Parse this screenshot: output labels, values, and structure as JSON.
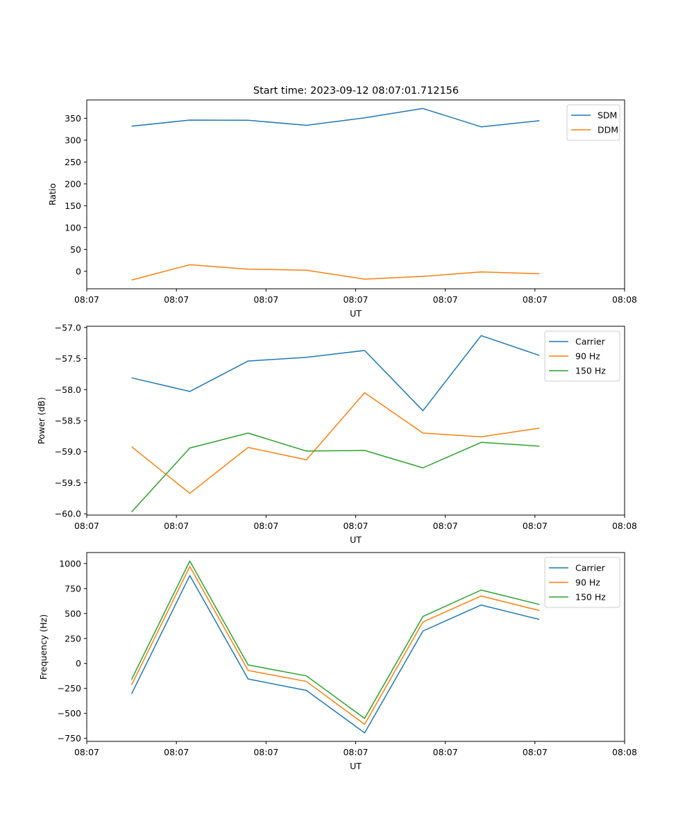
{
  "title": "Start time: 2023-09-12 08:07:01.712156",
  "colors": {
    "c0": "#1f77b4",
    "c1": "#ff7f0e",
    "c2": "#2ca02c"
  },
  "chart_data": [
    {
      "type": "line",
      "title": "Start time: 2023-09-12 08:07:01.712156",
      "xlabel": "UT",
      "ylabel": "Ratio",
      "xlim": [
        0,
        6
      ],
      "x": [
        0.5,
        1.15,
        1.8,
        2.45,
        3.1,
        3.75,
        4.4,
        5.05
      ],
      "xticks": [
        0,
        1,
        2,
        3,
        4,
        5,
        6
      ],
      "xtick_labels": [
        "08:07",
        "08:07",
        "08:07",
        "08:07",
        "08:07",
        "08:07",
        "08:08"
      ],
      "ylim": [
        -40,
        392
      ],
      "yticks": [
        0,
        50,
        100,
        150,
        200,
        250,
        300,
        350
      ],
      "legend_position": "top-right",
      "series": [
        {
          "name": "SDM",
          "color": "#1f77b4",
          "values": [
            332,
            346,
            345.5,
            334,
            351,
            372.5,
            330.5,
            344.5
          ]
        },
        {
          "name": "DDM",
          "color": "#ff7f0e",
          "values": [
            -20,
            15,
            5,
            2.5,
            -18,
            -11.5,
            -1.5,
            -5.5
          ]
        }
      ]
    },
    {
      "type": "line",
      "title": "",
      "xlabel": "UT",
      "ylabel": "Power (dB)",
      "xlim": [
        0,
        6
      ],
      "x": [
        0.5,
        1.15,
        1.8,
        2.45,
        3.1,
        3.75,
        4.4,
        5.05
      ],
      "xticks": [
        0,
        1,
        2,
        3,
        4,
        5,
        6
      ],
      "xtick_labels": [
        "08:07",
        "08:07",
        "08:07",
        "08:07",
        "08:07",
        "08:07",
        "08:08"
      ],
      "ylim": [
        -60.02,
        -56.98
      ],
      "yticks": [
        -60.0,
        -59.5,
        -59.0,
        -58.5,
        -58.0,
        -57.5,
        -57.0
      ],
      "ytick_labels": [
        "−60.0",
        "−59.5",
        "−59.0",
        "−58.5",
        "−58.0",
        "−57.5",
        "−57.0"
      ],
      "legend_position": "top-right",
      "series": [
        {
          "name": "Carrier",
          "color": "#1f77b4",
          "values": [
            -57.81,
            -58.03,
            -57.54,
            -57.48,
            -57.37,
            -58.34,
            -57.13,
            -57.45
          ]
        },
        {
          "name": "90 Hz",
          "color": "#ff7f0e",
          "values": [
            -58.92,
            -59.67,
            -58.93,
            -59.13,
            -58.05,
            -58.7,
            -58.76,
            -58.62
          ]
        },
        {
          "name": "150 Hz",
          "color": "#2ca02c",
          "values": [
            -59.97,
            -58.94,
            -58.7,
            -58.99,
            -58.98,
            -59.26,
            -58.85,
            -58.91
          ]
        }
      ]
    },
    {
      "type": "line",
      "title": "",
      "xlabel": "UT",
      "ylabel": "Frequency (Hz)",
      "xlim": [
        0,
        6
      ],
      "x": [
        0.5,
        1.15,
        1.8,
        2.45,
        3.1,
        3.75,
        4.4,
        5.05
      ],
      "xticks": [
        0,
        1,
        2,
        3,
        4,
        5,
        6
      ],
      "xtick_labels": [
        "08:07",
        "08:07",
        "08:07",
        "08:07",
        "08:07",
        "08:07",
        "08:08"
      ],
      "ylim": [
        -780,
        1110
      ],
      "yticks": [
        -750,
        -500,
        -250,
        0,
        250,
        500,
        750,
        1000
      ],
      "ytick_labels": [
        "−750",
        "−500",
        "−250",
        "0",
        "250",
        "500",
        "750",
        "1000"
      ],
      "legend_position": "top-right",
      "series": [
        {
          "name": "Carrier",
          "color": "#1f77b4",
          "values": [
            -305,
            880,
            -155,
            -270,
            -695,
            325,
            585,
            440
          ]
        },
        {
          "name": "90 Hz",
          "color": "#ff7f0e",
          "values": [
            -215,
            970,
            -70,
            -180,
            -610,
            415,
            675,
            530
          ]
        },
        {
          "name": "150 Hz",
          "color": "#2ca02c",
          "values": [
            -160,
            1025,
            -15,
            -125,
            -550,
            470,
            735,
            590
          ]
        }
      ]
    }
  ]
}
